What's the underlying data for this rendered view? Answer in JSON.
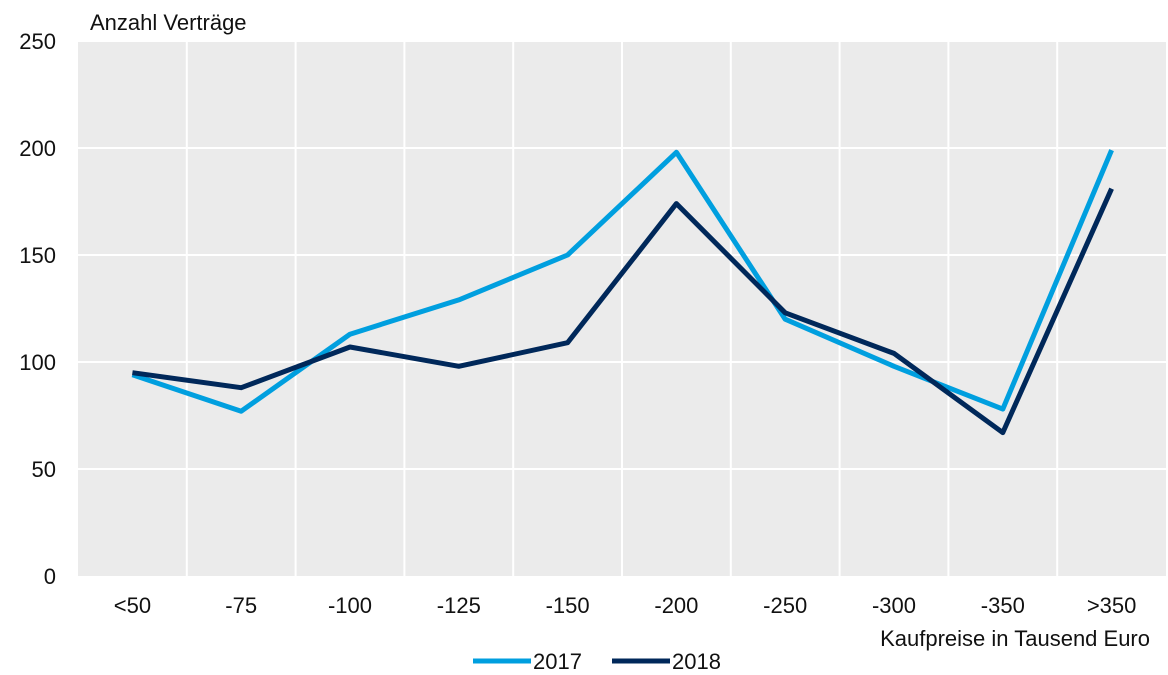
{
  "chart_data": {
    "type": "line",
    "title": "",
    "ylabel": "Anzahl Verträge",
    "xlabel": "Kaufpreise in Tausend Euro",
    "categories": [
      "<50",
      "-75",
      "-100",
      "-125",
      "-150",
      "-200",
      "-250",
      "-300",
      "-350",
      ">350"
    ],
    "ylim": [
      0,
      250
    ],
    "yticks": [
      0,
      50,
      100,
      150,
      200,
      250
    ],
    "grid": true,
    "legend_position": "bottom",
    "series": [
      {
        "name": "2017",
        "color": "#009FDF",
        "values": [
          94,
          77,
          113,
          129,
          150,
          198,
          120,
          98,
          78,
          199
        ]
      },
      {
        "name": "2018",
        "color": "#00285A",
        "values": [
          95,
          88,
          107,
          98,
          109,
          174,
          123,
          104,
          67,
          181
        ]
      }
    ],
    "plot_background": "#EBEBEB",
    "grid_color": "#FFFFFF"
  }
}
